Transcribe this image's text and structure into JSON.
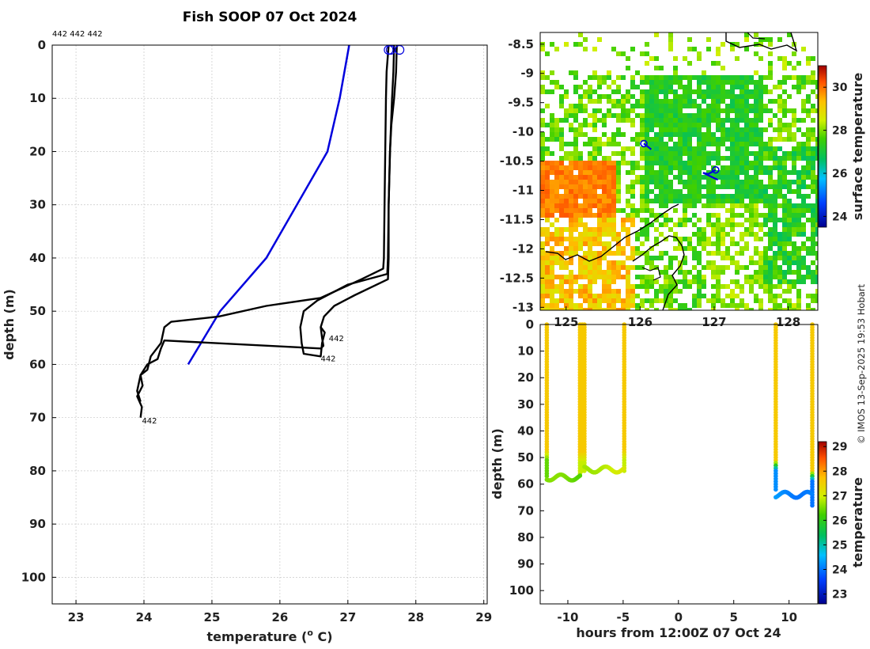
{
  "title": "Fish SOOP 07 Oct 2024",
  "credit": "© IMOS 13-Sep-2025 19:53 Hobart",
  "chart_data": [
    {
      "type": "line",
      "name": "profile",
      "header_labels": "442 442 442",
      "xlabel": "temperature (",
      "xlabel_sup": "o",
      "xlabel_end": " C)",
      "ylabel": "depth (m)",
      "xlim": [
        22.65,
        29.05
      ],
      "ylim": [
        105,
        0
      ],
      "xticks": [
        23,
        24,
        25,
        26,
        27,
        28,
        29
      ],
      "yticks": [
        0,
        10,
        20,
        30,
        40,
        50,
        60,
        70,
        80,
        90,
        100
      ],
      "climatology": {
        "color": "#0000dd",
        "points": [
          [
            27.02,
            0
          ],
          [
            26.95,
            5
          ],
          [
            26.88,
            10
          ],
          [
            26.7,
            20
          ],
          [
            26.25,
            30
          ],
          [
            25.8,
            40
          ],
          [
            25.12,
            50
          ],
          [
            24.65,
            60
          ]
        ]
      },
      "casts": [
        {
          "label": "442",
          "label_at": [
            23.97,
            70.5
          ],
          "points": [
            [
              27.6,
              0
            ],
            [
              27.57,
              5
            ],
            [
              27.56,
              10
            ],
            [
              27.55,
              20
            ],
            [
              27.54,
              30
            ],
            [
              27.53,
              40
            ],
            [
              27.52,
              42
            ],
            [
              27.2,
              44
            ],
            [
              26.6,
              47.5
            ],
            [
              25.8,
              49
            ],
            [
              25.1,
              51
            ],
            [
              24.4,
              52
            ],
            [
              24.3,
              53
            ],
            [
              24.25,
              56
            ],
            [
              24.1,
              58.5
            ],
            [
              24.05,
              61
            ],
            [
              23.95,
              62
            ],
            [
              23.98,
              64
            ],
            [
              23.9,
              66
            ],
            [
              23.97,
              68
            ],
            [
              23.95,
              70
            ]
          ]
        },
        {
          "label": "442",
          "label_at": [
            26.6,
            58.8
          ],
          "points": [
            [
              27.72,
              0
            ],
            [
              27.71,
              5
            ],
            [
              27.68,
              10
            ],
            [
              27.64,
              15
            ],
            [
              27.62,
              20
            ],
            [
              27.6,
              30
            ],
            [
              27.59,
              40
            ],
            [
              27.58,
              43
            ],
            [
              27.0,
              45
            ],
            [
              26.55,
              48
            ],
            [
              26.35,
              50
            ],
            [
              26.3,
              53
            ],
            [
              26.32,
              56
            ],
            [
              26.35,
              58
            ],
            [
              26.6,
              58.5
            ],
            [
              26.62,
              56
            ],
            [
              26.66,
              54
            ],
            [
              26.6,
              53
            ]
          ]
        },
        {
          "label": "442",
          "label_at": [
            26.72,
            55
          ],
          "points": [
            [
              27.68,
              0
            ],
            [
              27.67,
              5
            ],
            [
              27.65,
              10
            ],
            [
              27.62,
              20
            ],
            [
              27.6,
              30
            ],
            [
              27.6,
              40
            ],
            [
              27.59,
              44
            ],
            [
              27.1,
              47
            ],
            [
              26.8,
              49
            ],
            [
              26.65,
              51
            ],
            [
              26.6,
              53
            ],
            [
              26.62,
              55
            ],
            [
              26.64,
              56.5
            ],
            [
              26.6,
              57
            ],
            [
              24.3,
              55.5
            ],
            [
              24.25,
              57
            ],
            [
              24.2,
              59
            ],
            [
              24.05,
              60
            ],
            [
              23.95,
              62
            ],
            [
              23.9,
              65
            ],
            [
              23.95,
              67
            ]
          ]
        }
      ],
      "surface_marks": [
        27.6,
        27.63,
        27.76
      ]
    },
    {
      "type": "heatmap",
      "name": "map",
      "xlim": [
        124.65,
        128.4
      ],
      "ylim": [
        -13.05,
        -8.3
      ],
      "yticks": [
        -8.5,
        -9,
        -9.5,
        -10,
        -10.5,
        -11,
        -11.5,
        -12,
        -12.5,
        -13
      ],
      "ytick_labels": [
        "-8.5",
        "-9",
        "-9.5",
        "-10",
        "-10.5",
        "-11",
        "-11.5",
        "-12",
        "-12.5",
        "-13"
      ],
      "xticks": [
        125,
        126,
        127,
        128
      ],
      "xtick_labels": [
        "125",
        "126",
        "127",
        "128"
      ],
      "colorbar": {
        "label": "surface temperature",
        "range": [
          23.5,
          31
        ],
        "ticks": [
          24,
          26,
          28,
          30
        ]
      },
      "tracks": [
        {
          "points": [
            [
              126.05,
              -10.2
            ],
            [
              126.15,
              -10.3
            ]
          ]
        },
        {
          "points": [
            [
              127.02,
              -10.65
            ],
            [
              126.92,
              -10.72
            ],
            [
              126.85,
              -10.7
            ],
            [
              127.05,
              -10.82
            ]
          ]
        }
      ]
    },
    {
      "type": "scatter",
      "name": "section",
      "xlabel": "hours from 12:00Z 07 Oct 24",
      "ylabel": "depth (m)",
      "xlim": [
        -12.5,
        12.6
      ],
      "ylim": [
        105,
        0
      ],
      "xticks": [
        -10,
        -5,
        0,
        5,
        10
      ],
      "xtick_labels": [
        "-10",
        "-5",
        "0",
        "5",
        "10"
      ],
      "yticks": [
        0,
        10,
        20,
        30,
        40,
        50,
        60,
        70,
        80,
        90,
        100
      ],
      "colorbar": {
        "label": "temperature",
        "range": [
          22.6,
          29.2
        ],
        "ticks": [
          23,
          24,
          25,
          26,
          27,
          28,
          29
        ]
      },
      "profiles": [
        {
          "x": -11.9,
          "bottom": 57,
          "t_upper": 27.6,
          "t_lower": 26.4,
          "thermocline": 47
        },
        {
          "x": -8.9,
          "bottom": 56,
          "t_upper": 27.6,
          "t_lower": 26.9,
          "thermocline": 48
        },
        {
          "x": -8.7,
          "bottom": 55,
          "t_upper": 27.6,
          "t_lower": 26.9,
          "thermocline": 48
        },
        {
          "x": -8.5,
          "bottom": 55,
          "t_upper": 27.6,
          "t_lower": 26.9,
          "thermocline": 48
        },
        {
          "x": -4.9,
          "bottom": 55,
          "t_upper": 27.6,
          "t_lower": 26.9,
          "thermocline": 47
        },
        {
          "x": 8.8,
          "bottom": 62,
          "t_upper": 27.6,
          "t_lower": 24.2,
          "thermocline": 51
        },
        {
          "x": 12.1,
          "bottom": 68,
          "t_upper": 27.6,
          "t_lower": 24.0,
          "thermocline": 55
        }
      ],
      "bottom_runs": [
        {
          "x0": -11.9,
          "x1": -8.9,
          "depth": 57.5,
          "temp": 26.4
        },
        {
          "x0": -8.5,
          "x1": -4.9,
          "depth": 54.5,
          "temp": 26.9
        },
        {
          "x0": 8.8,
          "x1": 12.1,
          "depth": 64,
          "temp": 24.2
        }
      ]
    }
  ]
}
